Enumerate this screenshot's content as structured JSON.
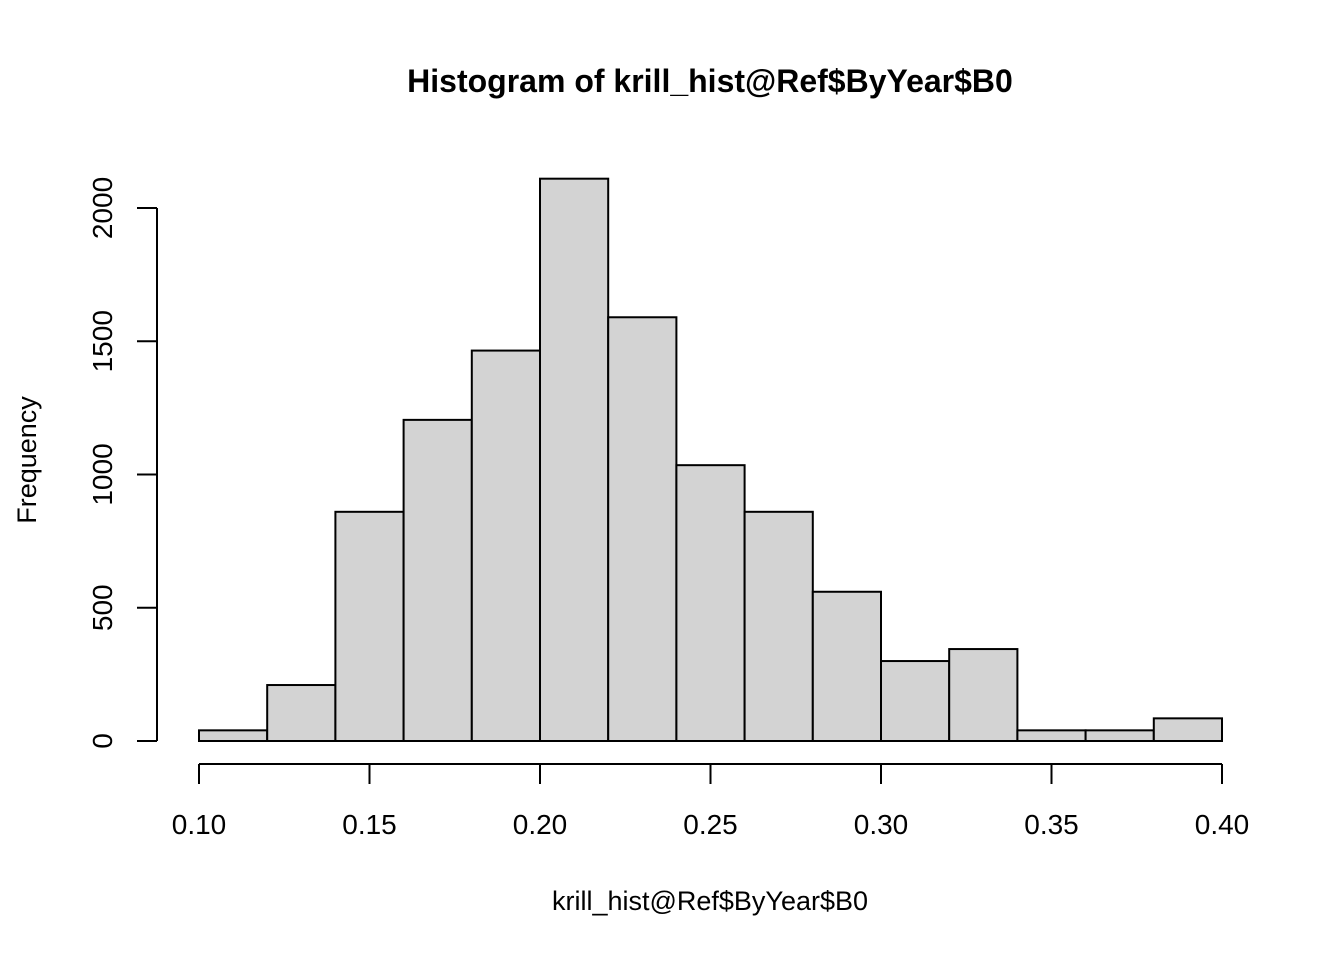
{
  "chart_data": {
    "type": "bar",
    "title": "Histogram of krill_hist@Ref$ByYear$B0",
    "xlabel": "krill_hist@Ref$ByYear$B0",
    "ylabel": "Frequency",
    "xlim": [
      0.1,
      0.4
    ],
    "ylim": [
      0,
      2100
    ],
    "bins": [
      {
        "start": 0.1,
        "end": 0.12,
        "count": 40
      },
      {
        "start": 0.12,
        "end": 0.14,
        "count": 210
      },
      {
        "start": 0.14,
        "end": 0.16,
        "count": 860
      },
      {
        "start": 0.16,
        "end": 0.18,
        "count": 1205
      },
      {
        "start": 0.18,
        "end": 0.2,
        "count": 1465
      },
      {
        "start": 0.2,
        "end": 0.22,
        "count": 2110
      },
      {
        "start": 0.22,
        "end": 0.24,
        "count": 1590
      },
      {
        "start": 0.24,
        "end": 0.26,
        "count": 1035
      },
      {
        "start": 0.26,
        "end": 0.28,
        "count": 860
      },
      {
        "start": 0.28,
        "end": 0.3,
        "count": 560
      },
      {
        "start": 0.3,
        "end": 0.32,
        "count": 300
      },
      {
        "start": 0.32,
        "end": 0.34,
        "count": 345
      },
      {
        "start": 0.34,
        "end": 0.36,
        "count": 40
      },
      {
        "start": 0.36,
        "end": 0.38,
        "count": 40
      },
      {
        "start": 0.38,
        "end": 0.4,
        "count": 85
      }
    ],
    "x_ticks": [
      {
        "value": 0.1,
        "label": "0.10"
      },
      {
        "value": 0.15,
        "label": "0.15"
      },
      {
        "value": 0.2,
        "label": "0.20"
      },
      {
        "value": 0.25,
        "label": "0.25"
      },
      {
        "value": 0.3,
        "label": "0.30"
      },
      {
        "value": 0.35,
        "label": "0.35"
      },
      {
        "value": 0.4,
        "label": "0.40"
      }
    ],
    "y_ticks": [
      {
        "value": 0,
        "label": "0"
      },
      {
        "value": 500,
        "label": "500"
      },
      {
        "value": 1000,
        "label": "1000"
      },
      {
        "value": 1500,
        "label": "1500"
      },
      {
        "value": 2000,
        "label": "2000"
      }
    ],
    "grid": false,
    "bar_fill": "#d3d3d3",
    "bar_stroke": "#000000"
  }
}
